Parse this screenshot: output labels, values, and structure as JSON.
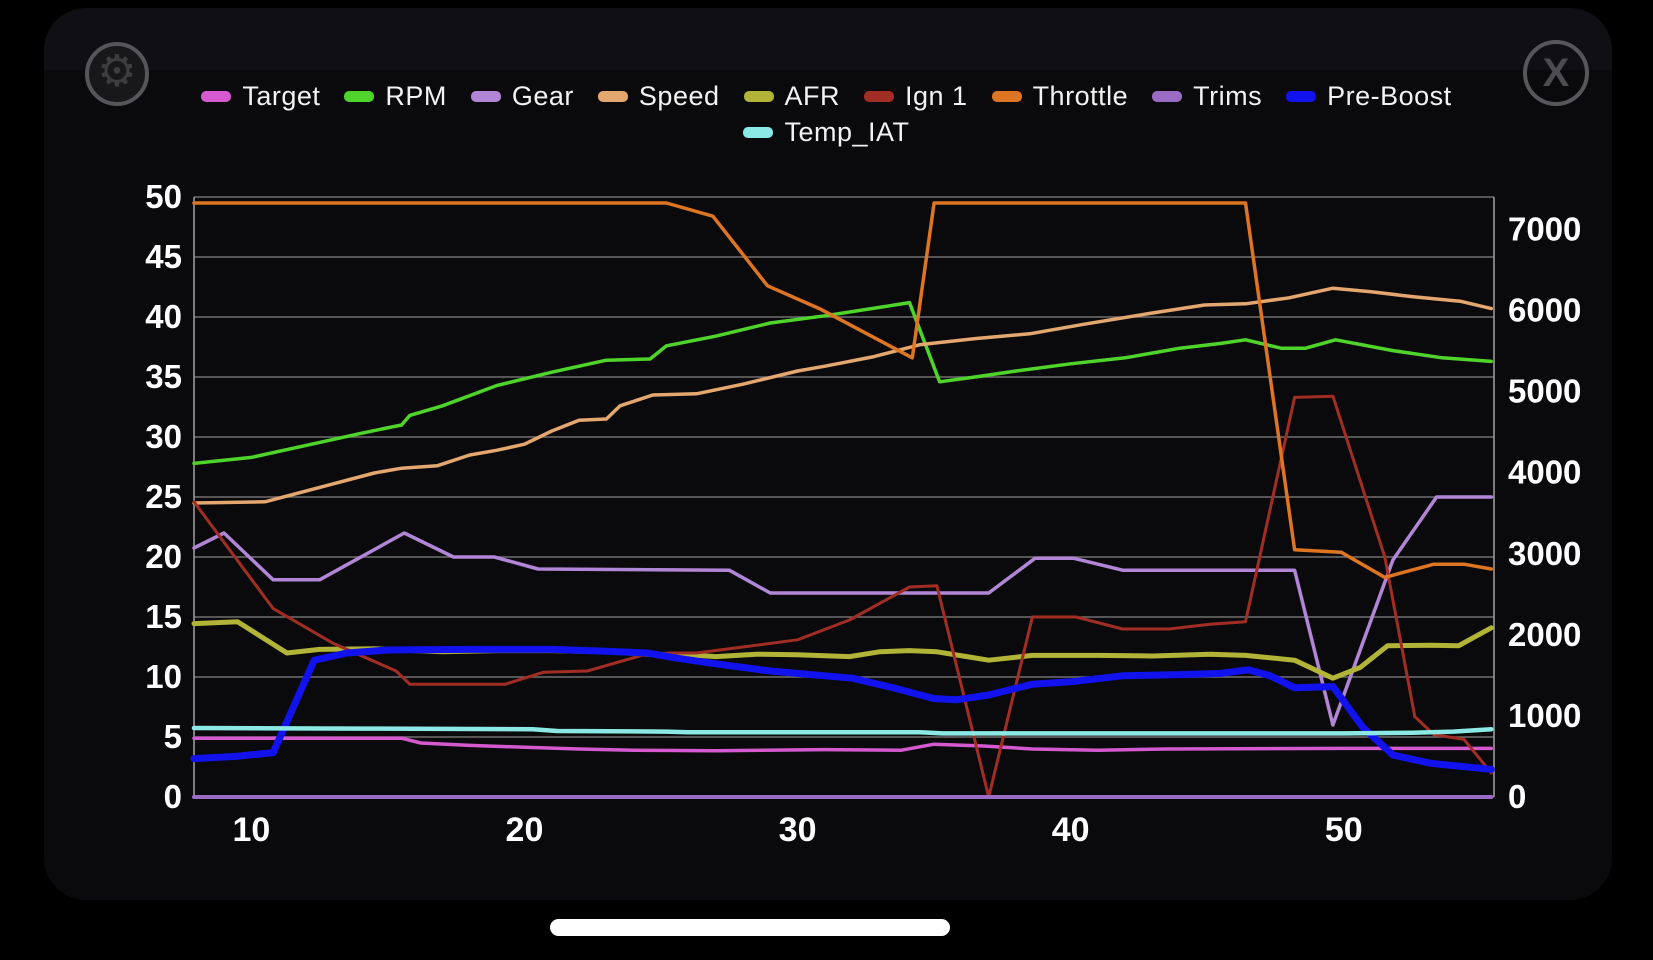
{
  "icons": {
    "settings": "gear",
    "close": "X"
  },
  "chart_data": {
    "type": "line",
    "title": "",
    "grid": true,
    "legend_position": "top-center",
    "legend_rows": [
      [
        "Target",
        "RPM",
        "Gear",
        "Speed",
        "AFR",
        "Ign 1",
        "Throttle",
        "Trims",
        "Pre-Boost"
      ],
      [
        "Temp_IAT"
      ]
    ],
    "x_axis": {
      "range": [
        7.9,
        55.5
      ],
      "ticks": [
        10,
        20,
        30,
        40,
        50
      ]
    },
    "y_axis_left": {
      "range": [
        0,
        50
      ],
      "ticks": [
        0,
        5,
        10,
        15,
        20,
        25,
        30,
        35,
        40,
        45,
        50
      ]
    },
    "y_axis_right": {
      "range": [
        0,
        7400
      ],
      "ticks": [
        0,
        1000,
        2000,
        3000,
        4000,
        5000,
        6000,
        7000
      ]
    },
    "note": "All series plotted against left axis units; right axis (e.g. RPM scale) spans 0-7400 over same height",
    "series": [
      {
        "name": "Target",
        "color": "#d55ad0",
        "width": 3.5,
        "points": [
          [
            7.9,
            4.9
          ],
          [
            15.5,
            4.9
          ],
          [
            16.2,
            4.5
          ],
          [
            18,
            4.3
          ],
          [
            20,
            4.15
          ],
          [
            22,
            4.0
          ],
          [
            24,
            3.9
          ],
          [
            27,
            3.85
          ],
          [
            31,
            3.95
          ],
          [
            33.8,
            3.9
          ],
          [
            35,
            4.4
          ],
          [
            36.8,
            4.25
          ],
          [
            38.6,
            4.0
          ],
          [
            41,
            3.9
          ],
          [
            43.5,
            4.0
          ],
          [
            50,
            4.05
          ],
          [
            55.4,
            4.05
          ]
        ]
      },
      {
        "name": "RPM",
        "color": "#4fd42c",
        "width": 3.5,
        "points": [
          [
            7.9,
            27.8
          ],
          [
            10,
            28.3
          ],
          [
            12,
            29.3
          ],
          [
            14,
            30.3
          ],
          [
            15.5,
            31.0
          ],
          [
            15.8,
            31.8
          ],
          [
            17,
            32.6
          ],
          [
            19,
            34.3
          ],
          [
            21,
            35.4
          ],
          [
            23,
            36.4
          ],
          [
            24.6,
            36.5
          ],
          [
            25.2,
            37.6
          ],
          [
            27,
            38.4
          ],
          [
            29,
            39.5
          ],
          [
            31,
            40.1
          ],
          [
            33,
            40.8
          ],
          [
            34.1,
            41.2
          ],
          [
            35.2,
            34.6
          ],
          [
            36.5,
            35.0
          ],
          [
            38,
            35.5
          ],
          [
            40,
            36.1
          ],
          [
            42,
            36.6
          ],
          [
            44,
            37.4
          ],
          [
            45.5,
            37.8
          ],
          [
            46.4,
            38.1
          ],
          [
            47.7,
            37.4
          ],
          [
            48.6,
            37.4
          ],
          [
            49.7,
            38.1
          ],
          [
            51.8,
            37.2
          ],
          [
            53.6,
            36.6
          ],
          [
            55.4,
            36.3
          ]
        ]
      },
      {
        "name": "Gear",
        "color": "#b286d6",
        "width": 3.5,
        "points": [
          [
            7.9,
            20.75
          ],
          [
            9.0,
            22.0
          ],
          [
            10.8,
            18.1
          ],
          [
            12.5,
            18.1
          ],
          [
            15.6,
            22.0
          ],
          [
            17.4,
            20.0
          ],
          [
            18.9,
            20.0
          ],
          [
            20.5,
            19.0
          ],
          [
            27.5,
            18.9
          ],
          [
            29,
            17.0
          ],
          [
            37,
            17.0
          ],
          [
            38.7,
            19.9
          ],
          [
            40.1,
            19.9
          ],
          [
            41.9,
            18.9
          ],
          [
            48.2,
            18.9
          ],
          [
            49.6,
            6.0
          ],
          [
            51.8,
            19.75
          ],
          [
            53.4,
            25.0
          ],
          [
            55.4,
            25.0
          ]
        ]
      },
      {
        "name": "Speed",
        "color": "#e3a76f",
        "width": 3.5,
        "points": [
          [
            7.9,
            24.5
          ],
          [
            10.5,
            24.6
          ],
          [
            12.5,
            25.8
          ],
          [
            14.5,
            27.0
          ],
          [
            15.5,
            27.4
          ],
          [
            16.8,
            27.6
          ],
          [
            18,
            28.5
          ],
          [
            19,
            28.9
          ],
          [
            20,
            29.4
          ],
          [
            21,
            30.5
          ],
          [
            22,
            31.4
          ],
          [
            23,
            31.5
          ],
          [
            23.5,
            32.6
          ],
          [
            24.7,
            33.5
          ],
          [
            26.3,
            33.6
          ],
          [
            28,
            34.4
          ],
          [
            30,
            35.5
          ],
          [
            31,
            35.9
          ],
          [
            32.8,
            36.7
          ],
          [
            34.5,
            37.7
          ],
          [
            36.5,
            38.2
          ],
          [
            38.5,
            38.6
          ],
          [
            40.5,
            39.4
          ],
          [
            42.9,
            40.3
          ],
          [
            44.9,
            41.0
          ],
          [
            46.4,
            41.1
          ],
          [
            48,
            41.6
          ],
          [
            49.6,
            42.4
          ],
          [
            51,
            42.1
          ],
          [
            52.5,
            41.7
          ],
          [
            54.3,
            41.3
          ],
          [
            55.4,
            40.7
          ]
        ]
      },
      {
        "name": "AFR",
        "color": "#b1b437",
        "width": 5,
        "points": [
          [
            7.9,
            14.45
          ],
          [
            9.5,
            14.6
          ],
          [
            11.3,
            12.0
          ],
          [
            12.5,
            12.3
          ],
          [
            14.5,
            12.35
          ],
          [
            16,
            12.2
          ],
          [
            17,
            12.1
          ],
          [
            19,
            12.2
          ],
          [
            21,
            12.2
          ],
          [
            23,
            12.1
          ],
          [
            24.5,
            11.9
          ],
          [
            26,
            11.85
          ],
          [
            27,
            11.7
          ],
          [
            28.5,
            11.9
          ],
          [
            30,
            11.85
          ],
          [
            31.9,
            11.7
          ],
          [
            33,
            12.1
          ],
          [
            34.1,
            12.2
          ],
          [
            35.1,
            12.1
          ],
          [
            36.2,
            11.7
          ],
          [
            37,
            11.4
          ],
          [
            38.6,
            11.8
          ],
          [
            41,
            11.8
          ],
          [
            43,
            11.75
          ],
          [
            45.1,
            11.9
          ],
          [
            46.4,
            11.8
          ],
          [
            48.2,
            11.4
          ],
          [
            49.6,
            9.9
          ],
          [
            50.6,
            10.8
          ],
          [
            51.6,
            12.6
          ],
          [
            53.2,
            12.65
          ],
          [
            54.2,
            12.6
          ],
          [
            55.4,
            14.1
          ]
        ]
      },
      {
        "name": "Ign 1",
        "color": "#a12d24",
        "width": 3,
        "points": [
          [
            7.9,
            24.6
          ],
          [
            10.8,
            15.7
          ],
          [
            13,
            12.8
          ],
          [
            15.3,
            10.5
          ],
          [
            15.8,
            9.4
          ],
          [
            19.3,
            9.4
          ],
          [
            20.7,
            10.4
          ],
          [
            22.3,
            10.5
          ],
          [
            24.3,
            11.8
          ],
          [
            25.3,
            12.0
          ],
          [
            26.3,
            12.0
          ],
          [
            28,
            12.5
          ],
          [
            30,
            13.1
          ],
          [
            31.9,
            14.75
          ],
          [
            34.1,
            17.5
          ],
          [
            35.1,
            17.6
          ],
          [
            37,
            0.0
          ],
          [
            38.6,
            15.0
          ],
          [
            40.2,
            15.0
          ],
          [
            41.9,
            14.0
          ],
          [
            43.6,
            14.0
          ],
          [
            45.1,
            14.4
          ],
          [
            46.4,
            14.6
          ],
          [
            48.2,
            33.3
          ],
          [
            49.6,
            33.4
          ],
          [
            51.5,
            20.0
          ],
          [
            52.6,
            6.7
          ],
          [
            53.3,
            5.2
          ],
          [
            54.4,
            4.8
          ],
          [
            55.4,
            2.0
          ]
        ]
      },
      {
        "name": "Throttle",
        "color": "#dd7522",
        "width": 3.5,
        "points": [
          [
            7.9,
            49.5
          ],
          [
            25.2,
            49.5
          ],
          [
            26.9,
            48.4
          ],
          [
            28.9,
            42.6
          ],
          [
            30.8,
            40.7
          ],
          [
            34.2,
            36.6
          ],
          [
            35.0,
            49.5
          ],
          [
            46.4,
            49.5
          ],
          [
            48.2,
            20.6
          ],
          [
            49.9,
            20.4
          ],
          [
            51.5,
            18.3
          ],
          [
            53.3,
            19.4
          ],
          [
            54.4,
            19.4
          ],
          [
            55.4,
            19.0
          ]
        ]
      },
      {
        "name": "Trims",
        "color": "#9b6cc3",
        "width": 4,
        "points": [
          [
            7.9,
            0
          ],
          [
            55.4,
            0
          ]
        ]
      },
      {
        "name": "Pre-Boost",
        "color": "#1212ef",
        "width": 7,
        "points": [
          [
            7.9,
            3.2
          ],
          [
            9.5,
            3.4
          ],
          [
            10.8,
            3.7
          ],
          [
            12.3,
            11.4
          ],
          [
            13.5,
            12.0
          ],
          [
            15,
            12.25
          ],
          [
            18,
            12.3
          ],
          [
            21,
            12.3
          ],
          [
            23,
            12.15
          ],
          [
            24.5,
            12.0
          ],
          [
            25.5,
            11.6
          ],
          [
            27,
            11.1
          ],
          [
            29,
            10.5
          ],
          [
            31,
            10.1
          ],
          [
            32,
            9.9
          ],
          [
            33.5,
            9.1
          ],
          [
            35,
            8.2
          ],
          [
            35.8,
            8.1
          ],
          [
            37,
            8.5
          ],
          [
            38.6,
            9.4
          ],
          [
            40,
            9.6
          ],
          [
            41.9,
            10.1
          ],
          [
            44,
            10.2
          ],
          [
            45.5,
            10.3
          ],
          [
            46.5,
            10.6
          ],
          [
            47.3,
            10.1
          ],
          [
            48.2,
            9.1
          ],
          [
            49.6,
            9.2
          ],
          [
            50.7,
            5.8
          ],
          [
            51.8,
            3.5
          ],
          [
            53.2,
            2.8
          ],
          [
            54.3,
            2.55
          ],
          [
            55.4,
            2.3
          ]
        ]
      },
      {
        "name": "Temp_IAT",
        "color": "#8ce8e4",
        "width": 4.5,
        "points": [
          [
            7.9,
            5.75
          ],
          [
            14,
            5.7
          ],
          [
            20.3,
            5.65
          ],
          [
            21.2,
            5.5
          ],
          [
            25.2,
            5.45
          ],
          [
            26,
            5.4
          ],
          [
            34.5,
            5.4
          ],
          [
            35.3,
            5.3
          ],
          [
            50,
            5.3
          ],
          [
            52.5,
            5.35
          ],
          [
            54,
            5.45
          ],
          [
            55.4,
            5.65
          ]
        ]
      }
    ],
    "colors": {
      "grid": "#707070",
      "plot_border": "#9a9a9a",
      "axis_text": "#ffffff",
      "plot_background": "#000000",
      "panel_background": "#0a0a0c"
    }
  }
}
